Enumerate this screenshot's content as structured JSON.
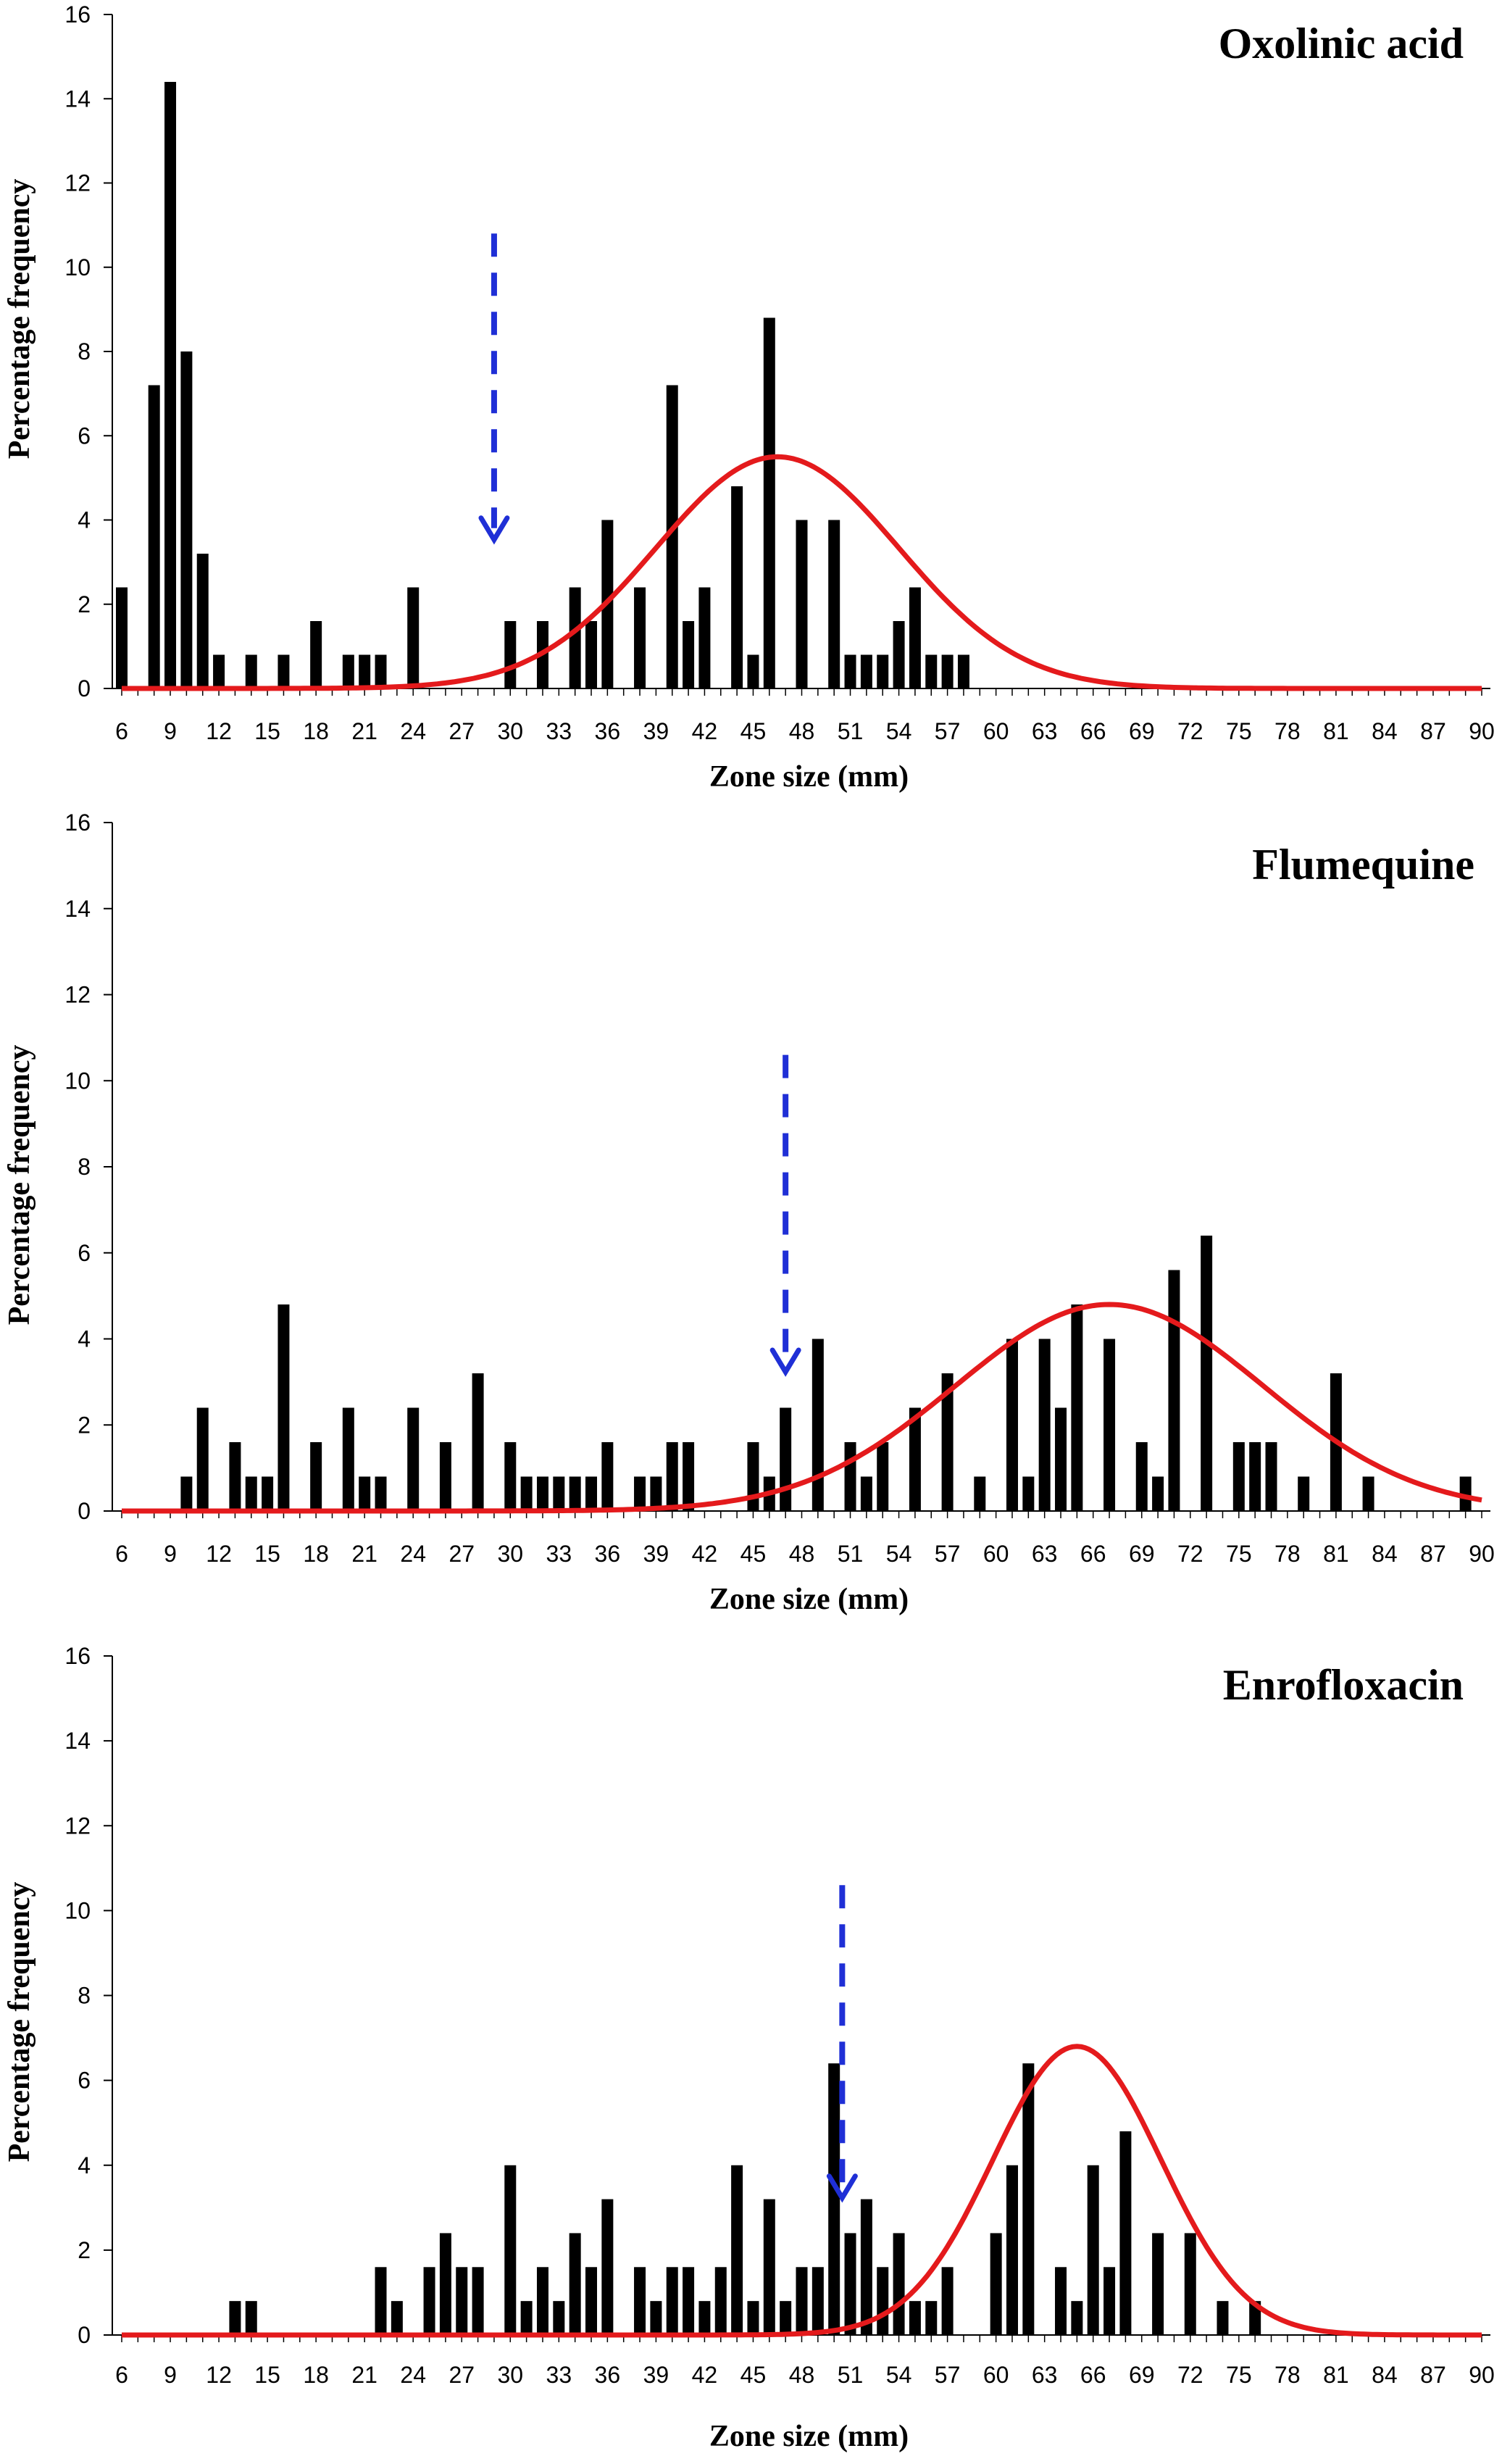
{
  "chart_data": [
    {
      "type": "bar",
      "title": "Oxolinic acid",
      "xlabel": "Zone size (mm)",
      "ylabel": "Percentage frequency",
      "ylim": [
        0,
        16
      ],
      "yticks": [
        "0",
        "2",
        "4",
        "6",
        "8",
        "10",
        "12",
        "14",
        "16"
      ],
      "xlim": [
        6,
        90
      ],
      "xticks": [
        "6",
        "9",
        "12",
        "15",
        "18",
        "21",
        "24",
        "27",
        "30",
        "33",
        "36",
        "39",
        "42",
        "45",
        "48",
        "51",
        "54",
        "57",
        "60",
        "63",
        "66",
        "69",
        "72",
        "75",
        "78",
        "81",
        "84",
        "87",
        "90"
      ],
      "bars": {
        "x": [
          6,
          8,
          9,
          10,
          11,
          12,
          14,
          16,
          18,
          20,
          21,
          22,
          24,
          30,
          32,
          34,
          35,
          36,
          38,
          40,
          41,
          42,
          44,
          45,
          46,
          48,
          50,
          51,
          52,
          53,
          54,
          55,
          56,
          57,
          58
        ],
        "values": [
          2.4,
          7.2,
          14.4,
          8.0,
          3.2,
          0.8,
          0.8,
          0.8,
          1.6,
          0.8,
          0.8,
          0.8,
          2.4,
          1.6,
          1.6,
          2.4,
          1.6,
          4.0,
          2.4,
          7.2,
          1.6,
          2.4,
          4.8,
          0.8,
          8.8,
          4.0,
          4.0,
          0.8,
          0.8,
          0.8,
          1.6,
          2.4,
          0.8,
          0.8,
          0.8
        ]
      },
      "normal_fit": {
        "color": "#e41a1c",
        "mean": 46.5,
        "sd": 7.5,
        "peak": 5.5
      },
      "cutoff": {
        "color": "#1f2fd6",
        "x": 29,
        "y_top": 10.8,
        "y_bottom": 3.6
      }
    },
    {
      "type": "bar",
      "title": "Flumequine",
      "xlabel": "Zone size (mm)",
      "ylabel": "Percentage frequency",
      "ylim": [
        0,
        16
      ],
      "yticks": [
        "0",
        "2",
        "4",
        "6",
        "8",
        "10",
        "12",
        "14",
        "16"
      ],
      "xlim": [
        6,
        90
      ],
      "xticks": [
        "6",
        "9",
        "12",
        "15",
        "18",
        "21",
        "24",
        "27",
        "30",
        "33",
        "36",
        "39",
        "42",
        "45",
        "48",
        "51",
        "54",
        "57",
        "60",
        "63",
        "66",
        "69",
        "72",
        "75",
        "78",
        "81",
        "84",
        "87",
        "90"
      ],
      "bars": {
        "x": [
          10,
          11,
          13,
          14,
          15,
          16,
          18,
          20,
          21,
          22,
          24,
          26,
          28,
          30,
          31,
          32,
          33,
          34,
          35,
          36,
          38,
          39,
          40,
          41,
          45,
          46,
          47,
          49,
          51,
          52,
          53,
          55,
          57,
          59,
          61,
          62,
          63,
          64,
          65,
          67,
          69,
          70,
          71,
          73,
          75,
          76,
          77,
          79,
          81,
          83,
          89
        ],
        "values": [
          0.8,
          2.4,
          1.6,
          0.8,
          0.8,
          4.8,
          1.6,
          2.4,
          0.8,
          0.8,
          2.4,
          1.6,
          3.2,
          1.6,
          0.8,
          0.8,
          0.8,
          0.8,
          0.8,
          1.6,
          0.8,
          0.8,
          1.6,
          1.6,
          1.6,
          0.8,
          2.4,
          4.0,
          1.6,
          0.8,
          1.6,
          2.4,
          3.2,
          0.8,
          4.0,
          0.8,
          4.0,
          2.4,
          4.8,
          4.0,
          1.6,
          0.8,
          5.6,
          6.4,
          1.6,
          1.6,
          1.6,
          0.8,
          3.2,
          0.8,
          0.8
        ]
      },
      "normal_fit": {
        "color": "#e41a1c",
        "mean": 67,
        "sd": 9.5,
        "peak": 4.8
      },
      "cutoff": {
        "color": "#1f2fd6",
        "x": 47,
        "y_top": 10.6,
        "y_bottom": 3.3
      }
    },
    {
      "type": "bar",
      "title": "Enrofloxacin",
      "xlabel": "Zone size (mm)",
      "ylabel": "Percentage frequency",
      "ylim": [
        0,
        16
      ],
      "yticks": [
        "0",
        "2",
        "4",
        "6",
        "8",
        "10",
        "12",
        "14",
        "16"
      ],
      "xlim": [
        6,
        90
      ],
      "xticks": [
        "6",
        "9",
        "12",
        "15",
        "18",
        "21",
        "24",
        "27",
        "30",
        "33",
        "36",
        "39",
        "42",
        "45",
        "48",
        "51",
        "54",
        "57",
        "60",
        "63",
        "66",
        "69",
        "72",
        "75",
        "78",
        "81",
        "84",
        "87",
        "90"
      ],
      "bars": {
        "x": [
          13,
          14,
          22,
          23,
          25,
          26,
          27,
          28,
          30,
          31,
          32,
          33,
          34,
          35,
          36,
          38,
          39,
          40,
          41,
          42,
          43,
          44,
          45,
          46,
          47,
          48,
          49,
          50,
          51,
          52,
          53,
          54,
          55,
          56,
          57,
          60,
          61,
          62,
          64,
          65,
          66,
          67,
          68,
          70,
          72,
          74,
          76
        ],
        "values": [
          0.8,
          0.8,
          1.6,
          0.8,
          1.6,
          2.4,
          1.6,
          1.6,
          4.0,
          0.8,
          1.6,
          0.8,
          2.4,
          1.6,
          3.2,
          1.6,
          0.8,
          1.6,
          1.6,
          0.8,
          1.6,
          4.0,
          0.8,
          3.2,
          0.8,
          1.6,
          1.6,
          6.4,
          2.4,
          3.2,
          1.6,
          2.4,
          0.8,
          0.8,
          1.6,
          2.4,
          4.0,
          6.4,
          1.6,
          0.8,
          4.0,
          1.6,
          4.8,
          2.4,
          2.4,
          0.8,
          0.8
        ]
      },
      "normal_fit": {
        "color": "#e41a1c",
        "mean": 65,
        "sd": 5.2,
        "peak": 6.8
      },
      "cutoff": {
        "color": "#1f2fd6",
        "x": 50.5,
        "y_top": 10.6,
        "y_bottom": 3.3
      }
    }
  ]
}
